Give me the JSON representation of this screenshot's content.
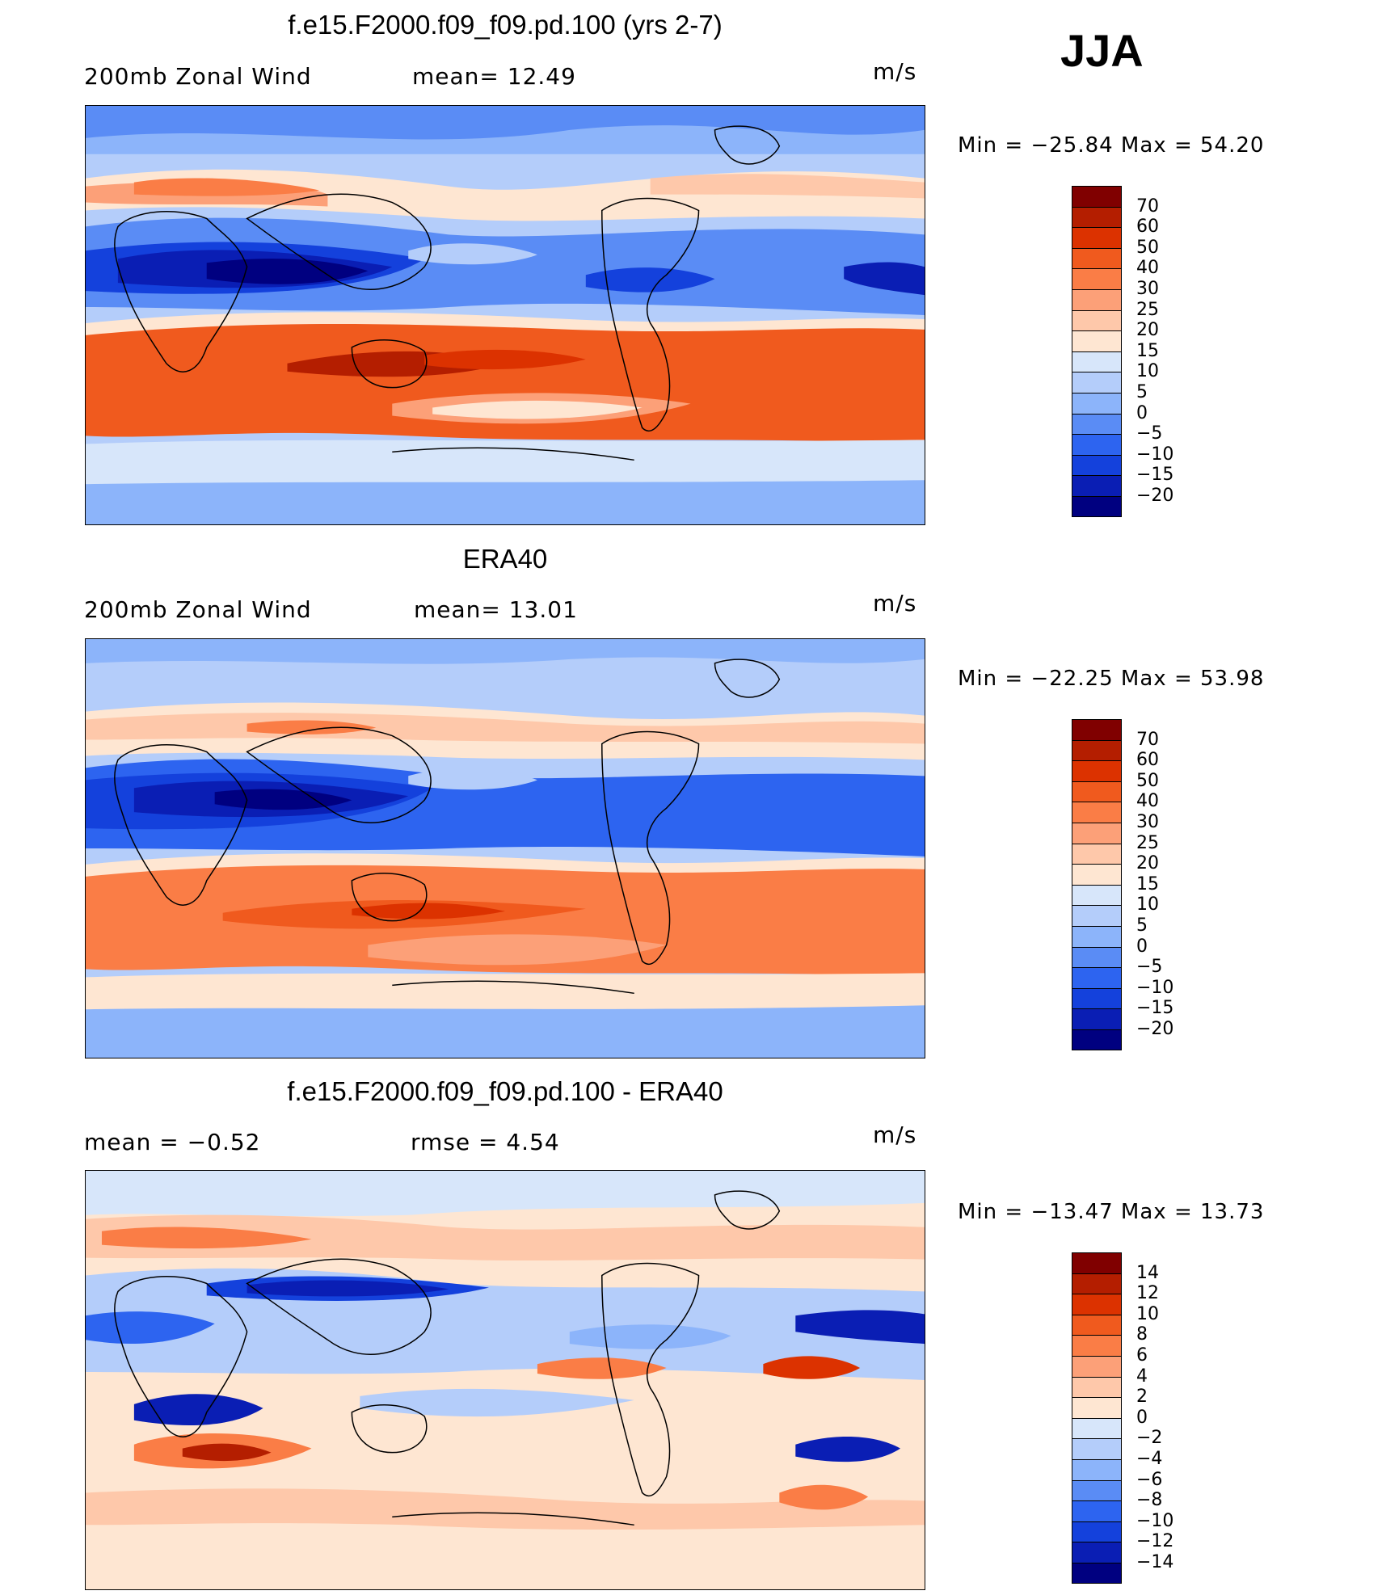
{
  "season": "JJA",
  "panels": [
    {
      "id": "model",
      "title": "f.e15.F2000.f09_f09.pd.100 (yrs 2-7)",
      "left_text": "200mb  Zonal  Wind",
      "stat_text": "mean=   12.49",
      "units": "m/s",
      "minmax": "Min  =  −25.84  Max  =    54.20",
      "levels": [
        "70",
        "60",
        "50",
        "40",
        "30",
        "25",
        "20",
        "15",
        "10",
        "5",
        "0",
        "−5",
        "−10",
        "−15",
        "−20"
      ],
      "colors": [
        "#800000",
        "#b41e00",
        "#dc3200",
        "#f05a1e",
        "#fa7d46",
        "#fca078",
        "#fec8aa",
        "#fee6d2",
        "#d7e6fa",
        "#b4cdfa",
        "#8cb4fa",
        "#5a8cf5",
        "#2d64f0",
        "#1441dc",
        "#0a1eb4",
        "#000080"
      ]
    },
    {
      "id": "obs",
      "title": "ERA40",
      "left_text": "200mb  Zonal  Wind",
      "stat_text": "mean=   13.01",
      "units": "m/s",
      "minmax": "Min  =  −22.25  Max  =    53.98",
      "levels": [
        "70",
        "60",
        "50",
        "40",
        "30",
        "25",
        "20",
        "15",
        "10",
        "5",
        "0",
        "−5",
        "−10",
        "−15",
        "−20"
      ],
      "colors": [
        "#800000",
        "#b41e00",
        "#dc3200",
        "#f05a1e",
        "#fa7d46",
        "#fca078",
        "#fec8aa",
        "#fee6d2",
        "#d7e6fa",
        "#b4cdfa",
        "#8cb4fa",
        "#5a8cf5",
        "#2d64f0",
        "#1441dc",
        "#0a1eb4",
        "#000080"
      ]
    },
    {
      "id": "diff",
      "title": "f.e15.F2000.f09_f09.pd.100 - ERA40",
      "left_text": "mean  =    −0.52",
      "stat_text": "rmse  =     4.54",
      "units": "m/s",
      "minmax": "Min  =  −13.47  Max  =    13.73",
      "levels": [
        "14",
        "12",
        "10",
        "8",
        "6",
        "4",
        "2",
        "0",
        "−2",
        "−4",
        "−6",
        "−8",
        "−10",
        "−12",
        "−14"
      ],
      "colors": [
        "#800000",
        "#b41e00",
        "#dc3200",
        "#f05a1e",
        "#fa7d46",
        "#fca078",
        "#fec8aa",
        "#fee6d2",
        "#d7e6fa",
        "#b4cdfa",
        "#8cb4fa",
        "#5a8cf5",
        "#2d64f0",
        "#1441dc",
        "#0a1eb4",
        "#000080"
      ]
    }
  ]
}
